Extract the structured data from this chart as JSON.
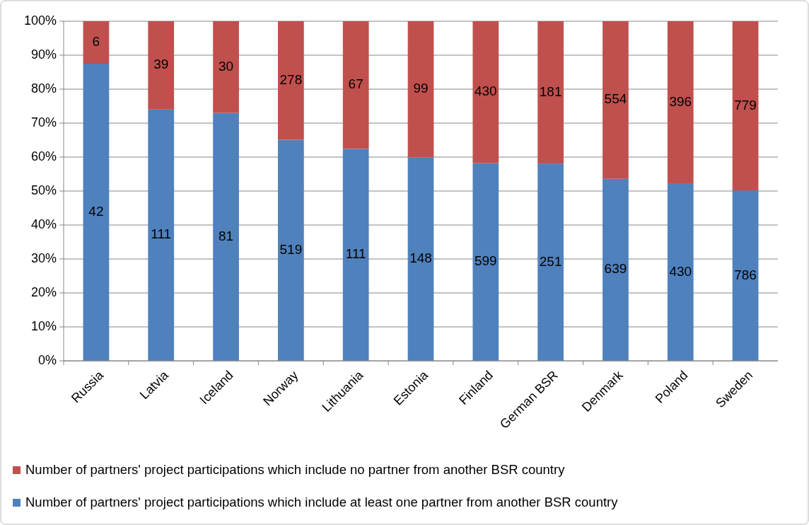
{
  "chart_data": {
    "type": "bar",
    "stacked": true,
    "categories": [
      "Russia",
      "Latvia",
      "Iceland",
      "Norway",
      "Lithuania",
      "Estonia",
      "Finland",
      "German BSR",
      "Denmark",
      "Poland",
      "Sweden"
    ],
    "series": [
      {
        "name": "Number of partners' project participations which include at least one partner from another BSR country",
        "color": "#4f81bd",
        "values": [
          87.5,
          74.0,
          73.0,
          65.1,
          62.4,
          59.9,
          58.2,
          58.1,
          53.6,
          52.1,
          50.2
        ]
      },
      {
        "name": "Number of partners' project participations which include no partner from another BSR country",
        "color": "#c0504d",
        "values": [
          12.5,
          26.0,
          27.0,
          34.9,
          37.6,
          40.1,
          41.8,
          41.9,
          46.4,
          47.9,
          49.8
        ]
      }
    ],
    "annotations": [
      "42",
      "111",
      "81",
      "519",
      "111",
      "148",
      "599",
      "251",
      "639",
      "430",
      "786",
      "6",
      "39",
      "30",
      "278",
      "67",
      "99",
      "430",
      "181",
      "554",
      "396",
      "779"
    ],
    "ylim": [
      0,
      100
    ],
    "yticks": [
      {
        "value": 0,
        "label": "0%"
      },
      {
        "value": 10,
        "label": "10%"
      },
      {
        "value": 20,
        "label": "20%"
      },
      {
        "value": 30,
        "label": "30%"
      },
      {
        "value": 40,
        "label": "40%"
      },
      {
        "value": 50,
        "label": "50%"
      },
      {
        "value": 60,
        "label": "60%"
      },
      {
        "value": 70,
        "label": "70%"
      },
      {
        "value": 80,
        "label": "80%"
      },
      {
        "value": 90,
        "label": "90%"
      },
      {
        "value": 100,
        "label": "100%"
      }
    ],
    "grid": "y",
    "legend": "bottom"
  }
}
